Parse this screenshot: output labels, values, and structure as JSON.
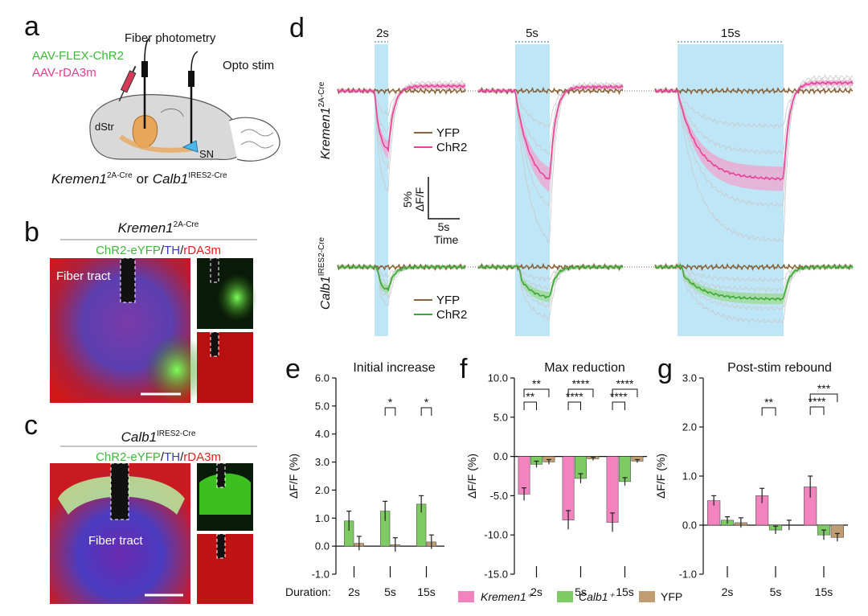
{
  "panel_labels": [
    "a",
    "b",
    "c",
    "d",
    "e",
    "f",
    "g"
  ],
  "schematic": {
    "fiber": "Fiber photometry",
    "virus1": "AAV-FLEX-ChR2",
    "virus2": "AAV-rDA3m",
    "opto": "Opto stim",
    "region1": "dStr",
    "region2": "SN",
    "genotype": [
      "Kremen1",
      "2A-Cre",
      "or",
      "Calb1",
      "IRES2-Cre"
    ]
  },
  "histology": [
    {
      "genotype": [
        "Kremen1",
        "2A-Cre"
      ],
      "stain": [
        "ChR2-eYFP",
        "/",
        "TH",
        "/",
        "rDA3m"
      ],
      "label": "Fiber tract"
    },
    {
      "genotype": [
        "Calb1",
        "IRES2-Cre"
      ],
      "stain": [
        "ChR2-eYFP",
        "/",
        "TH",
        "/",
        "rDA3m"
      ],
      "label": "Fiber tract"
    }
  ],
  "traces": {
    "durations": [
      "2s",
      "5s",
      "15s"
    ],
    "rows": [
      {
        "genotype": [
          "Kremen1",
          "2A-Cre"
        ],
        "legend": [
          "YFP",
          "ChR2"
        ]
      },
      {
        "genotype": [
          "Calb1",
          "IRES2-Cre"
        ],
        "legend": [
          "YFP",
          "ChR2"
        ]
      }
    ],
    "scale": {
      "y": "5%",
      "y_unit": "ΔF/F",
      "x": "5s",
      "x_unit": "Time"
    }
  },
  "duration_label": "Duration:",
  "chart_data": [
    {
      "type": "bar",
      "title": "Initial increase",
      "ylabel": "ΔF/F (%)",
      "categories": [
        "2s",
        "5s",
        "15s"
      ],
      "series": [
        {
          "name": "Calb1⁺",
          "color": "#7dcb62",
          "values": [
            0.9,
            1.25,
            1.5
          ],
          "errors": [
            0.35,
            0.35,
            0.3
          ]
        },
        {
          "name": "YFP",
          "color": "#c09d72",
          "values": [
            0.1,
            0.05,
            0.15
          ],
          "errors": [
            0.25,
            0.25,
            0.25
          ]
        }
      ],
      "ylim": [
        -1,
        6
      ],
      "yticks": [
        {
          "value": -1,
          "label": "-1.0"
        },
        {
          "value": 0,
          "label": "0.0"
        },
        {
          "value": 1,
          "label": "1.0"
        },
        {
          "value": 2,
          "label": "2.0"
        },
        {
          "value": 3,
          "label": "3.0"
        },
        {
          "value": 4,
          "label": "4.0"
        },
        {
          "value": 5,
          "label": "5.0"
        },
        {
          "value": 6,
          "label": "6.0"
        }
      ],
      "annotations": [
        "*",
        "*"
      ]
    },
    {
      "type": "bar",
      "title": "Max reduction",
      "ylabel": "ΔF/F (%)",
      "categories": [
        "2s",
        "5s",
        "15s"
      ],
      "series": [
        {
          "name": "Kremen1⁺",
          "color": "#f283bf",
          "values": [
            -4.8,
            -8.1,
            -8.4
          ],
          "errors": [
            0.8,
            1.2,
            1.2
          ]
        },
        {
          "name": "Calb1⁺",
          "color": "#7dcb62",
          "values": [
            -1.0,
            -2.8,
            -3.2
          ],
          "errors": [
            0.4,
            0.6,
            0.5
          ]
        },
        {
          "name": "YFP",
          "color": "#c09d72",
          "values": [
            -0.7,
            -0.3,
            -0.6
          ],
          "errors": [
            0.3,
            0.2,
            0.2
          ]
        }
      ],
      "ylim": [
        -15,
        10
      ],
      "yticks": [
        {
          "value": -15,
          "label": "-15.0"
        },
        {
          "value": -10,
          "label": "-10.0"
        },
        {
          "value": -5,
          "label": "-5.0"
        },
        {
          "value": 0,
          "label": "0.0"
        },
        {
          "value": 5,
          "label": "5.0"
        },
        {
          "value": 10,
          "label": "10.0"
        }
      ],
      "annotations": [
        "**",
        "**",
        "****",
        "****",
        "****",
        "****"
      ]
    },
    {
      "type": "bar",
      "title": "Post-stim rebound",
      "ylabel": "ΔF/F (%)",
      "categories": [
        "2s",
        "5s",
        "15s"
      ],
      "series": [
        {
          "name": "Kremen1⁺",
          "color": "#f283bf",
          "values": [
            0.5,
            0.6,
            0.78
          ],
          "errors": [
            0.1,
            0.15,
            0.22
          ]
        },
        {
          "name": "Calb1⁺",
          "color": "#7dcb62",
          "values": [
            0.1,
            -0.1,
            -0.2
          ],
          "errors": [
            0.07,
            0.08,
            0.1
          ]
        },
        {
          "name": "YFP",
          "color": "#c09d72",
          "values": [
            0.05,
            0.0,
            -0.25
          ],
          "errors": [
            0.1,
            0.1,
            0.08
          ]
        }
      ],
      "ylim": [
        -1,
        3
      ],
      "yticks": [
        {
          "value": -1,
          "label": "-1.0"
        },
        {
          "value": 0,
          "label": "0.0"
        },
        {
          "value": 1,
          "label": "1.0"
        },
        {
          "value": 2,
          "label": "2.0"
        },
        {
          "value": 3,
          "label": "3.0"
        }
      ],
      "annotations": [
        "**",
        "***",
        "****"
      ]
    }
  ]
}
